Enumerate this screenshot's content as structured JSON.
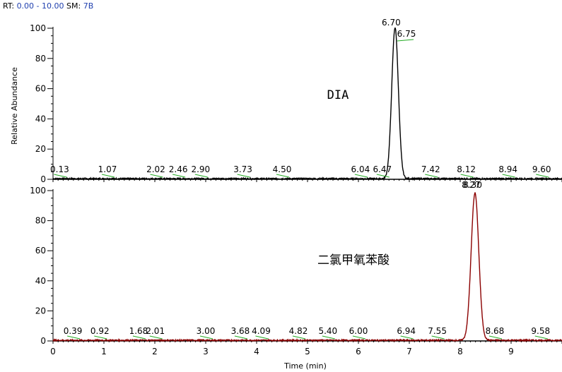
{
  "header": {
    "rt_label": "RT:",
    "rt_value": "0.00 - 10.00",
    "sm_label": "SM:",
    "sm_value": "7B"
  },
  "colors": {
    "trace_top": "#000000",
    "trace_bottom": "#8b0000",
    "leader": "#22aa22"
  },
  "chart_data": [
    {
      "type": "line",
      "name": "DIA",
      "ylabel": "Relative Abundance",
      "xlim": [
        0,
        10
      ],
      "ylim": [
        0,
        100
      ],
      "yticks": [
        0,
        20,
        40,
        60,
        80,
        100
      ],
      "peak": {
        "center": 6.72,
        "sigma": 0.065,
        "height": 100
      },
      "peak_labels": [
        "0.13",
        "1.07",
        "2.02",
        "2.46",
        "2.90",
        "3.73",
        "4.50",
        "6.04",
        "6.47",
        "6.70",
        "6.75",
        "7.42",
        "8.12",
        "8.94",
        "9.60"
      ],
      "label_rt": [
        0.13,
        1.07,
        2.02,
        2.46,
        2.9,
        3.73,
        4.5,
        6.04,
        6.47,
        6.7,
        6.75,
        7.42,
        8.12,
        8.94,
        9.6
      ]
    },
    {
      "type": "line",
      "name": "二氯甲氧苯酸",
      "xlabel": "Time (min)",
      "xlim": [
        0,
        10
      ],
      "ylim": [
        0,
        100
      ],
      "xticks": [
        0,
        1,
        2,
        3,
        4,
        5,
        6,
        7,
        8,
        9
      ],
      "yticks": [
        0,
        20,
        40,
        60,
        80,
        100
      ],
      "peak": {
        "center": 8.29,
        "sigma": 0.075,
        "height": 98
      },
      "peak_labels": [
        "0.39",
        "0.92",
        "1.68",
        "2.01",
        "3.00",
        "3.68",
        "4.09",
        "4.82",
        "5.40",
        "6.00",
        "6.94",
        "7.55",
        "8.27",
        "8.30",
        "8.68",
        "9.58"
      ],
      "label_rt": [
        0.39,
        0.92,
        1.68,
        2.01,
        3.0,
        3.68,
        4.09,
        4.82,
        5.4,
        6.0,
        6.94,
        7.55,
        8.27,
        8.3,
        8.68,
        9.58
      ]
    }
  ]
}
